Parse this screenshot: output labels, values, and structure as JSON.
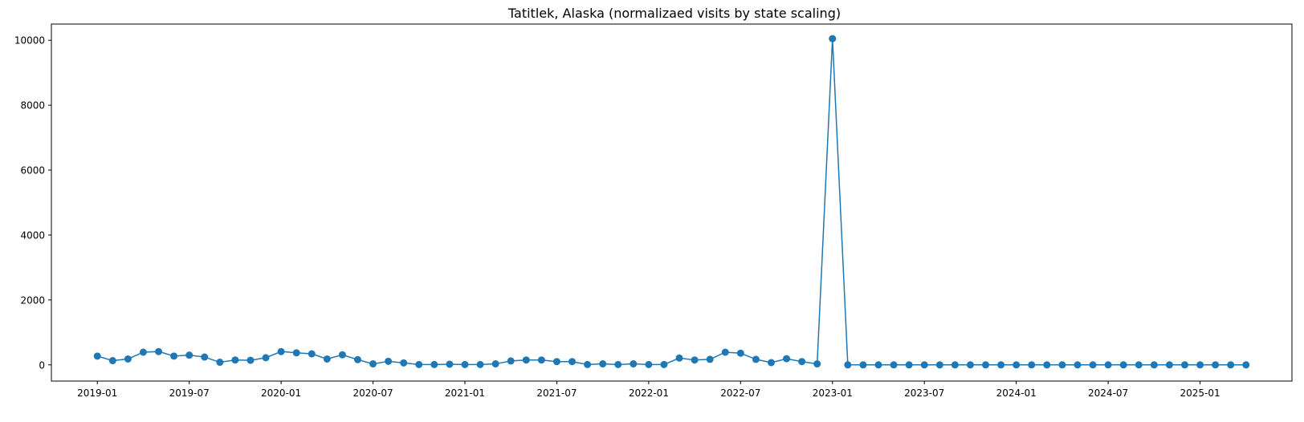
{
  "chart_data": {
    "type": "line",
    "title": "Tatitlek, Alaska (normalizaed visits by state scaling)",
    "xlabel": "",
    "ylabel": "",
    "x_tick_labels": [
      "2019-01",
      "2019-07",
      "2020-01",
      "2020-07",
      "2021-01",
      "2021-07",
      "2022-01",
      "2022-07",
      "2023-01",
      "2023-07",
      "2024-01",
      "2024-07",
      "2025-01"
    ],
    "y_tick_labels": [
      "0",
      "2000",
      "4000",
      "6000",
      "8000",
      "10000"
    ],
    "y_ticks": [
      0,
      2000,
      4000,
      6000,
      8000,
      10000
    ],
    "ylim": [
      -500,
      10500
    ],
    "xlim": [
      "2018-10",
      "2025-07"
    ],
    "grid": false,
    "color": "#1f77b4",
    "marker": "circle",
    "series": [
      {
        "x": [
          "2019-01",
          "2019-02",
          "2019-03",
          "2019-04",
          "2019-05",
          "2019-06",
          "2019-07",
          "2019-08",
          "2019-09",
          "2019-10",
          "2019-11",
          "2019-12",
          "2020-01",
          "2020-02",
          "2020-03",
          "2020-04",
          "2020-05",
          "2020-06",
          "2020-07",
          "2020-08",
          "2020-09",
          "2020-10",
          "2020-11",
          "2020-12",
          "2021-01",
          "2021-02",
          "2021-03",
          "2021-04",
          "2021-05",
          "2021-06",
          "2021-07",
          "2021-08",
          "2021-09",
          "2021-10",
          "2021-11",
          "2021-12",
          "2022-01",
          "2022-02",
          "2022-03",
          "2022-04",
          "2022-05",
          "2022-06",
          "2022-07",
          "2022-08",
          "2022-09",
          "2022-10",
          "2022-11",
          "2022-12",
          "2023-01",
          "2023-02",
          "2023-03",
          "2023-04",
          "2023-05",
          "2023-06",
          "2023-07",
          "2023-08",
          "2023-09",
          "2023-10",
          "2023-11",
          "2023-12",
          "2024-01",
          "2024-02",
          "2024-03",
          "2024-04",
          "2024-05",
          "2024-06",
          "2024-07",
          "2024-08",
          "2024-09",
          "2024-10",
          "2024-11",
          "2024-12",
          "2025-01",
          "2025-02",
          "2025-03",
          "2025-04"
        ],
        "y": [
          270,
          130,
          180,
          390,
          410,
          270,
          300,
          240,
          80,
          150,
          140,
          220,
          410,
          370,
          340,
          180,
          310,
          160,
          30,
          110,
          60,
          10,
          10,
          20,
          10,
          10,
          30,
          120,
          150,
          150,
          100,
          100,
          10,
          30,
          10,
          30,
          10,
          10,
          210,
          150,
          170,
          390,
          360,
          170,
          70,
          190,
          100,
          30,
          10050,
          0,
          0,
          0,
          0,
          0,
          0,
          0,
          0,
          0,
          0,
          0,
          0,
          0,
          0,
          0,
          0,
          0,
          0,
          0,
          0,
          0,
          0,
          0,
          0,
          0,
          0,
          0
        ]
      }
    ]
  }
}
